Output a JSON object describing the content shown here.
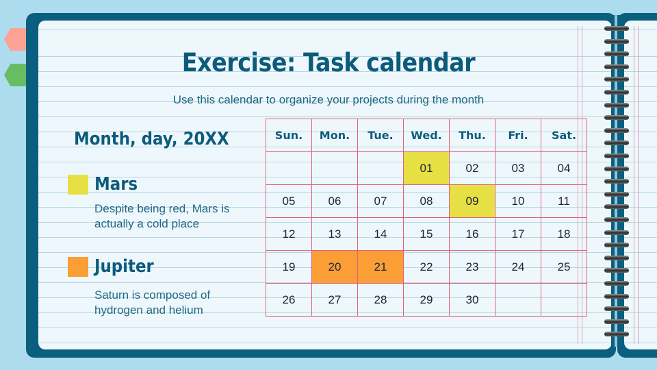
{
  "slide": {
    "title": "Exercise: Task calendar",
    "subtitle": "Use this calendar to organize your projects during the month",
    "date": "Month, day, 20XX"
  },
  "legend": [
    {
      "color": "#e6e044",
      "title": "Mars",
      "description": "Despite being red, Mars is actually a cold place"
    },
    {
      "color": "#fa9e35",
      "title": "Jupiter",
      "description": "Saturn is composed of hydrogen and helium"
    }
  ],
  "calendar": {
    "headers": [
      "Sun.",
      "Mon.",
      "Tue.",
      "Wed.",
      "Thu.",
      "Fri.",
      "Sat."
    ],
    "weeks": [
      [
        "",
        "",
        "",
        "01",
        "02",
        "03",
        "04"
      ],
      [
        "05",
        "06",
        "07",
        "08",
        "09",
        "10",
        "11"
      ],
      [
        "12",
        "13",
        "14",
        "15",
        "16",
        "17",
        "18"
      ],
      [
        "19",
        "20",
        "21",
        "22",
        "23",
        "24",
        "25"
      ],
      [
        "26",
        "27",
        "28",
        "29",
        "30",
        "",
        ""
      ]
    ],
    "highlights": {
      "yellow": [
        "01",
        "09"
      ],
      "orange": [
        "20",
        "21"
      ]
    }
  },
  "colors": {
    "cover": "#0a5f7e",
    "page": "#eef8fc",
    "heading": "#0c5b7b",
    "grid": "#e0607e",
    "tab_pink": "#fca396",
    "tab_green": "#67bc64"
  }
}
